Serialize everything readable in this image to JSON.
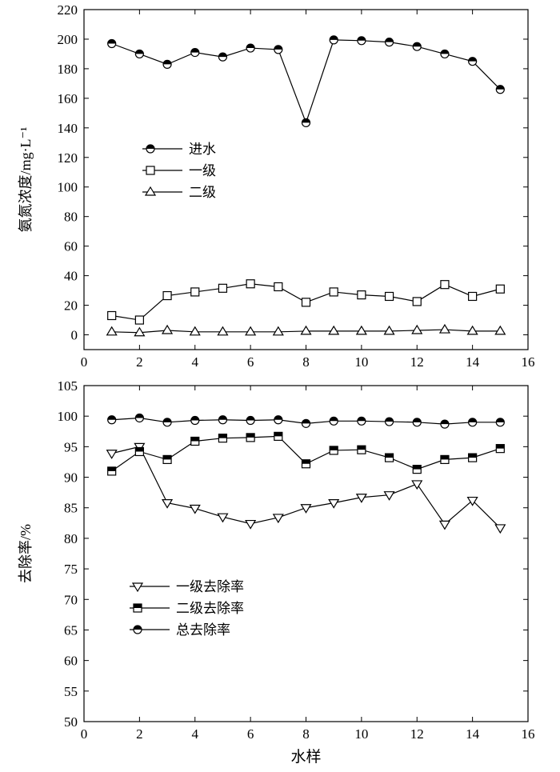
{
  "chart_data": [
    {
      "type": "line",
      "title": "",
      "xlabel": "",
      "ylabel": "氨氮浓度/mg·L⁻¹",
      "xlim": [
        0,
        16
      ],
      "ylim": [
        -10,
        220
      ],
      "xticks": [
        0,
        2,
        4,
        6,
        8,
        10,
        12,
        14,
        16
      ],
      "yticks": [
        0,
        20,
        40,
        60,
        80,
        100,
        120,
        140,
        160,
        180,
        200,
        220
      ],
      "grid": false,
      "legend_position": "middle-left",
      "x": [
        1,
        2,
        3,
        4,
        5,
        6,
        7,
        8,
        9,
        10,
        11,
        12,
        13,
        14,
        15
      ],
      "series": [
        {
          "name": "进水",
          "marker": "half-circle",
          "values": [
            197,
            190,
            183,
            191,
            188,
            194,
            193,
            143.5,
            199.5,
            199,
            198,
            195,
            190,
            185,
            166
          ]
        },
        {
          "name": "一级",
          "marker": "open-square",
          "values": [
            13,
            10,
            26.5,
            29,
            31.5,
            34.5,
            32.5,
            22,
            29,
            27,
            26,
            22.5,
            34,
            26,
            31
          ]
        },
        {
          "name": "二级",
          "marker": "open-triangle-up",
          "values": [
            2,
            1.5,
            3,
            2,
            2,
            2,
            2,
            2.5,
            2.5,
            2.5,
            2.5,
            3,
            3.5,
            2.5,
            2.5
          ]
        }
      ]
    },
    {
      "type": "line",
      "title": "",
      "xlabel": "水样",
      "ylabel": "去除率/%",
      "xlim": [
        0,
        16
      ],
      "ylim": [
        50,
        105
      ],
      "xticks": [
        0,
        2,
        4,
        6,
        8,
        10,
        12,
        14,
        16
      ],
      "yticks": [
        50,
        55,
        60,
        65,
        70,
        75,
        80,
        85,
        90,
        95,
        100,
        105
      ],
      "grid": false,
      "legend_position": "lower-left",
      "x": [
        1,
        2,
        3,
        4,
        5,
        6,
        7,
        8,
        9,
        10,
        11,
        12,
        13,
        14,
        15
      ],
      "series": [
        {
          "name": "一级去除率",
          "marker": "open-triangle-down",
          "values": [
            93.9,
            95.0,
            85.8,
            84.9,
            83.5,
            82.4,
            83.4,
            85.0,
            85.8,
            86.7,
            87.1,
            88.9,
            82.3,
            86.2,
            81.7
          ]
        },
        {
          "name": "二级去除率",
          "marker": "half-square",
          "values": [
            91.0,
            94.2,
            92.9,
            95.9,
            96.4,
            96.5,
            96.7,
            92.2,
            94.4,
            94.5,
            93.2,
            91.3,
            92.9,
            93.2,
            94.7
          ]
        },
        {
          "name": "总去除率",
          "marker": "half-circle",
          "values": [
            99.4,
            99.7,
            99.0,
            99.3,
            99.4,
            99.3,
            99.4,
            98.8,
            99.2,
            99.2,
            99.1,
            99.0,
            98.7,
            99.0,
            99.0
          ]
        }
      ]
    }
  ]
}
